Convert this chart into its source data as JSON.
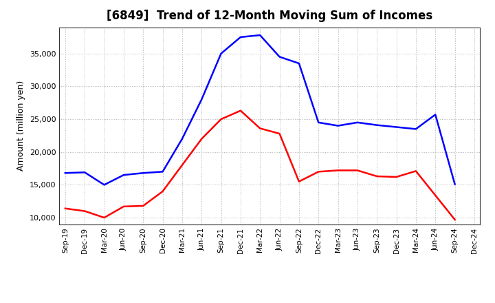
{
  "title": "[6849]  Trend of 12-Month Moving Sum of Incomes",
  "ylabel": "Amount (million yen)",
  "x_labels": [
    "Sep-19",
    "Dec-19",
    "Mar-20",
    "Jun-20",
    "Sep-20",
    "Dec-20",
    "Mar-21",
    "Jun-21",
    "Sep-21",
    "Dec-21",
    "Mar-22",
    "Jun-22",
    "Sep-22",
    "Dec-22",
    "Mar-23",
    "Jun-23",
    "Sep-23",
    "Dec-23",
    "Mar-24",
    "Jun-24",
    "Sep-24",
    "Dec-24"
  ],
  "ordinary_income": [
    16800,
    16900,
    15000,
    16500,
    16800,
    17000,
    22000,
    28000,
    35000,
    37500,
    37800,
    34500,
    33500,
    24500,
    24000,
    24500,
    24100,
    23800,
    23500,
    25700,
    15100,
    null
  ],
  "net_income": [
    11400,
    11000,
    10000,
    11700,
    11800,
    14000,
    18000,
    22000,
    25000,
    26300,
    23600,
    22800,
    15500,
    17000,
    17200,
    17200,
    16300,
    16200,
    17100,
    null,
    9700,
    null
  ],
  "ordinary_income_color": "#0000FF",
  "net_income_color": "#FF0000",
  "ylim_min": 9000,
  "ylim_max": 39000,
  "yticks": [
    10000,
    15000,
    20000,
    25000,
    30000,
    35000
  ],
  "background_color": "#FFFFFF",
  "plot_bg_color": "#FFFFFF",
  "grid_color": "#AAAAAA",
  "title_fontsize": 12,
  "ylabel_fontsize": 9,
  "tick_fontsize": 8,
  "xtick_fontsize": 7.5
}
